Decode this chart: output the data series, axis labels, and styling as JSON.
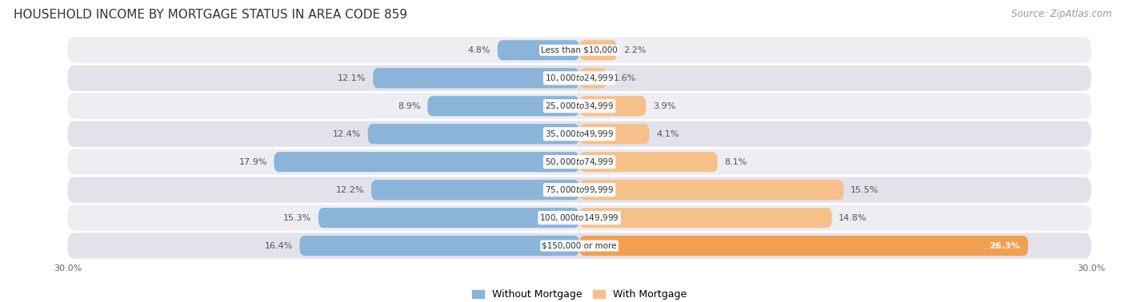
{
  "title": "HOUSEHOLD INCOME BY MORTGAGE STATUS IN AREA CODE 859",
  "source": "Source: ZipAtlas.com",
  "categories": [
    "Less than $10,000",
    "$10,000 to $24,999",
    "$25,000 to $34,999",
    "$35,000 to $49,999",
    "$50,000 to $74,999",
    "$75,000 to $99,999",
    "$100,000 to $149,999",
    "$150,000 or more"
  ],
  "without_mortgage": [
    4.8,
    12.1,
    8.9,
    12.4,
    17.9,
    12.2,
    15.3,
    16.4
  ],
  "with_mortgage": [
    2.2,
    1.6,
    3.9,
    4.1,
    8.1,
    15.5,
    14.8,
    26.3
  ],
  "color_without": "#8ab4d8",
  "color_with": "#f5c08a",
  "color_with_dark": "#f0a050",
  "row_bg_light": "#ededf2",
  "row_bg_dark": "#e2e2ea",
  "xlim": 30.0,
  "title_fontsize": 11,
  "source_fontsize": 8.5,
  "label_fontsize": 8,
  "cat_fontsize": 7.5
}
